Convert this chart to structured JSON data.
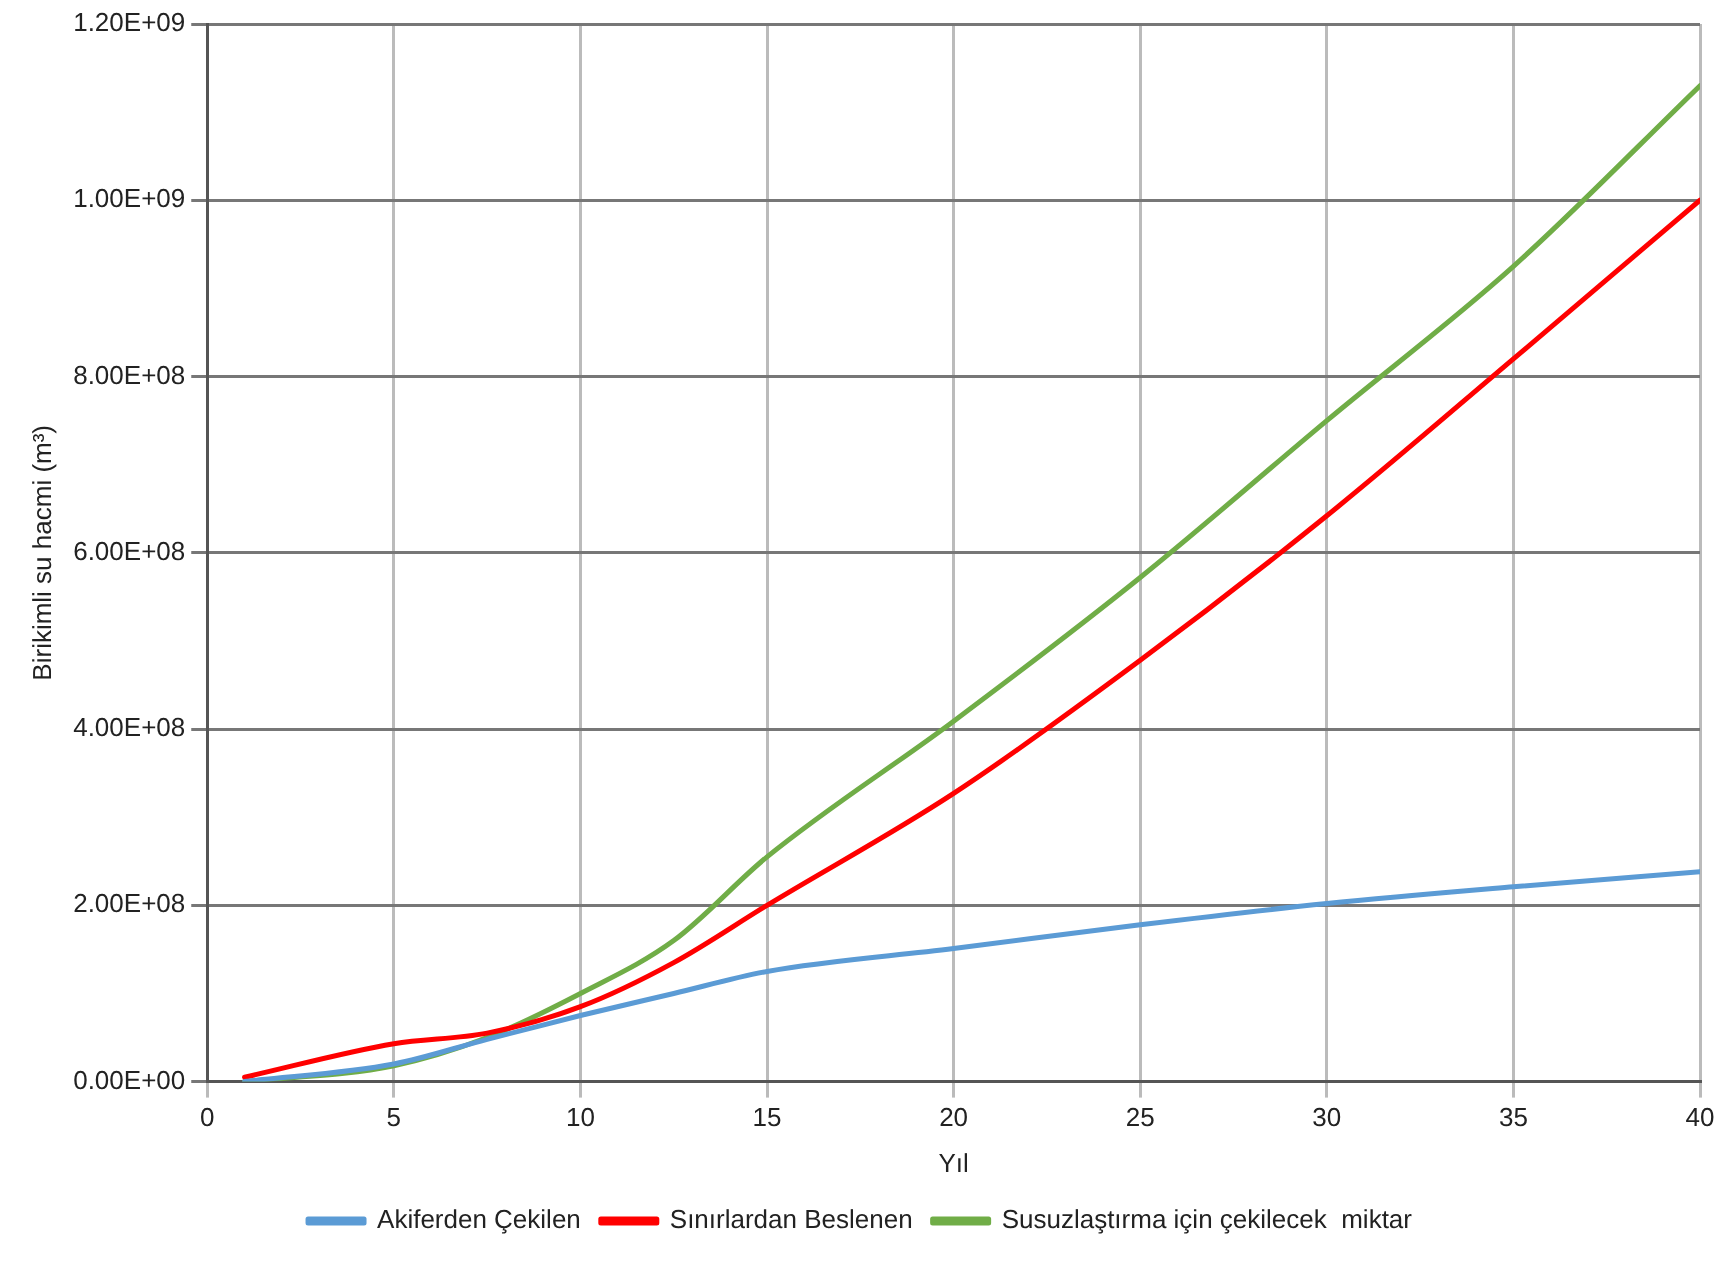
{
  "chart_data": {
    "type": "line",
    "xlabel": "Yıl",
    "ylabel": "Birikimli su hacmi (m³)",
    "xlim": [
      0,
      40
    ],
    "xticks": [
      0,
      5,
      10,
      15,
      20,
      25,
      30,
      35,
      40
    ],
    "ylim": [
      0,
      1200000000
    ],
    "yticks": [
      {
        "value": 0,
        "label": "0.00E+00"
      },
      {
        "value": 200000000,
        "label": "2.00E+08"
      },
      {
        "value": 400000000,
        "label": "4.00E+08"
      },
      {
        "value": 600000000,
        "label": "6.00E+08"
      },
      {
        "value": 800000000,
        "label": "8.00E+08"
      },
      {
        "value": 1000000000,
        "label": "1.00E+09"
      },
      {
        "value": 1200000000,
        "label": "1.20E+09"
      }
    ],
    "grid": true,
    "legend": "bottom",
    "marker": "none",
    "line_style": "solid",
    "series": [
      {
        "name": "Akiferden Çekilen",
        "color": "#5b9bd5",
        "x": [
          1,
          5,
          7.5,
          10,
          12.5,
          15,
          20,
          25,
          30,
          35,
          40
        ],
        "values": [
          0,
          20000000,
          48000000,
          75000000,
          100000000,
          125000000,
          151000000,
          178000000,
          202000000,
          221000000,
          238000000
        ]
      },
      {
        "name": "Sınırlardan Beslenen",
        "color": "#ff0000",
        "x": [
          1,
          5,
          7.5,
          10,
          12.5,
          15,
          20,
          25,
          30,
          35,
          40
        ],
        "values": [
          5000000,
          43000000,
          55000000,
          85000000,
          135000000,
          200000000,
          327000000,
          478000000,
          642000000,
          820000000,
          1000000000
        ]
      },
      {
        "name": "Susuzlaştırma için çekilecek  miktar",
        "color": "#70ad47",
        "x": [
          1,
          5,
          7.5,
          10,
          12.5,
          15,
          20,
          25,
          30,
          35,
          40
        ],
        "values": [
          0,
          18000000,
          50000000,
          100000000,
          160000000,
          255000000,
          409000000,
          572000000,
          750000000,
          925000000,
          1130000000
        ]
      }
    ]
  }
}
